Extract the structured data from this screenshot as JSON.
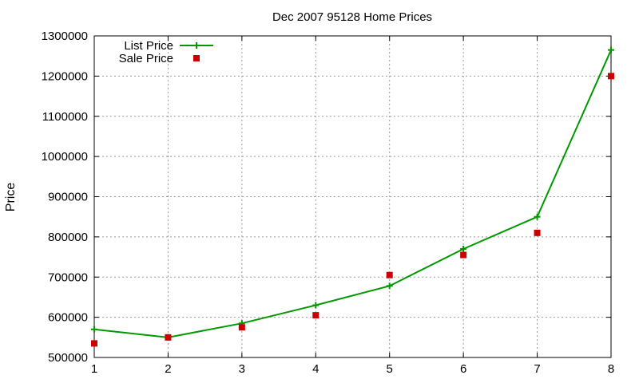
{
  "chart_data": {
    "type": "line",
    "title": "Dec 2007 95128 Home Prices",
    "xlabel": "",
    "ylabel": "Price",
    "x": [
      1,
      2,
      3,
      4,
      5,
      6,
      7,
      8
    ],
    "xlim": [
      1,
      8
    ],
    "ylim": [
      500000,
      1300000
    ],
    "x_ticks": [
      "1",
      "2",
      "3",
      "4",
      "5",
      "6",
      "7",
      "8"
    ],
    "y_ticks": [
      "500000",
      "600000",
      "700000",
      "800000",
      "900000",
      "1000000",
      "1100000",
      "1200000",
      "1300000"
    ],
    "grid": true,
    "legend_position": "top-left",
    "series": [
      {
        "name": "List Price",
        "style": "line-with-plus-markers",
        "color": "#009900",
        "values": [
          570000,
          550000,
          585000,
          630000,
          678000,
          770000,
          850000,
          1265000
        ]
      },
      {
        "name": "Sale Price",
        "style": "square-markers",
        "color": "#cc0000",
        "values": [
          535000,
          550000,
          575000,
          605000,
          705000,
          755000,
          810000,
          1200000
        ]
      }
    ]
  }
}
